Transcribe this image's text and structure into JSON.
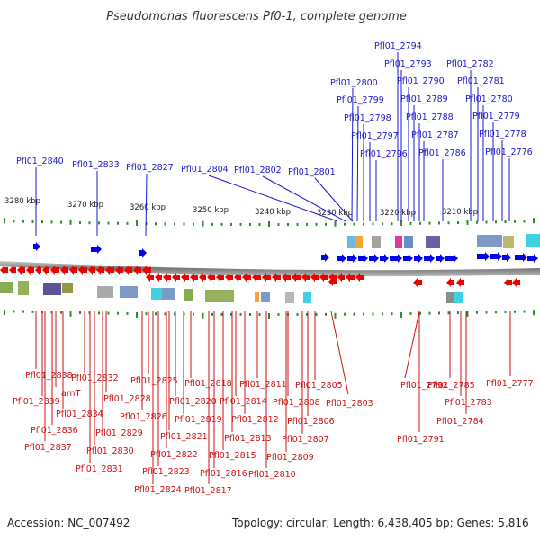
{
  "title": "Pseudomonas fluorescens Pf0-1, complete genome",
  "accession": "Accession: NC_007492",
  "topology": "Topology: circular; Length: 6,438,405 bp; Genes: 5,816",
  "scale_labels": [
    "3280 kbp",
    "3270 kbp",
    "3260 kbp",
    "3250 kbp",
    "3240 kbp",
    "3230 kbp",
    "3220 kbp",
    "3210 kbp"
  ],
  "top_genes": [
    "Pfl01_2840",
    "Pfl01_2833",
    "Pfl01_2827",
    "Pfl01_2804",
    "Pfl01_2802",
    "Pfl01_2801",
    "Pfl01_2800",
    "Pfl01_2799",
    "Pfl01_2798",
    "Pfl01_2797",
    "Pfl01_2796",
    "Pfl01_2794",
    "Pfl01_2793",
    "Pfl01_2790",
    "Pfl01_2789",
    "Pfl01_2788",
    "Pfl01_2787",
    "Pfl01_2786",
    "Pfl01_2782",
    "Pfl01_2781",
    "Pfl01_2780",
    "Pfl01_2779",
    "Pfl01_2778",
    "Pfl01_2776"
  ],
  "bottom_genes": [
    "Pfl01_2838",
    "Pfl01_2839",
    "arnT",
    "Pfl01_2834",
    "Pfl01_2836",
    "Pfl01_2837",
    "Pfl01_2832",
    "Pfl01_2828",
    "Pfl01_2829",
    "Pfl01_2830",
    "Pfl01_2831",
    "Pfl01_2825",
    "Pfl01_2826",
    "Pfl01_2822",
    "Pfl01_2823",
    "Pfl01_2824",
    "Pfl01_2820",
    "Pfl01_2819",
    "Pfl01_2821",
    "Pfl01_2818",
    "Pfl01_2816",
    "Pfl01_2817",
    "Pfl01_2815",
    "Pfl01_2814",
    "Pfl01_2813",
    "Pfl01_2812",
    "Pfl01_2811",
    "Pfl01_2810",
    "Pfl01_2809",
    "Pfl01_2808",
    "Pfl01_2807",
    "Pfl01_2806",
    "Pfl01_2805",
    "Pfl01_2803",
    "Pfl01_2792",
    "Pfl01_2791",
    "Pfl01_2785",
    "Pfl01_2783",
    "Pfl01_2784",
    "Pfl01_2777"
  ],
  "colors": {
    "forward": "#0000ee",
    "reverse": "#ee0000",
    "label_forward": "#1a1acc",
    "label_reverse": "#cc1111",
    "ticks": "#2e8b2e",
    "backbone": "#777777"
  }
}
